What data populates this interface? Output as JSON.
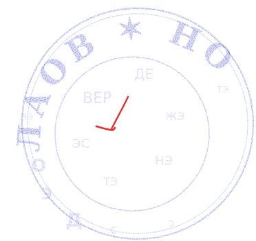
{
  "seal": {
    "outer_text": "ЛАОВ НОТ",
    "inner_text": "",
    "ink_color": "#3d44c9",
    "signature_color": "#e2312c"
  }
}
